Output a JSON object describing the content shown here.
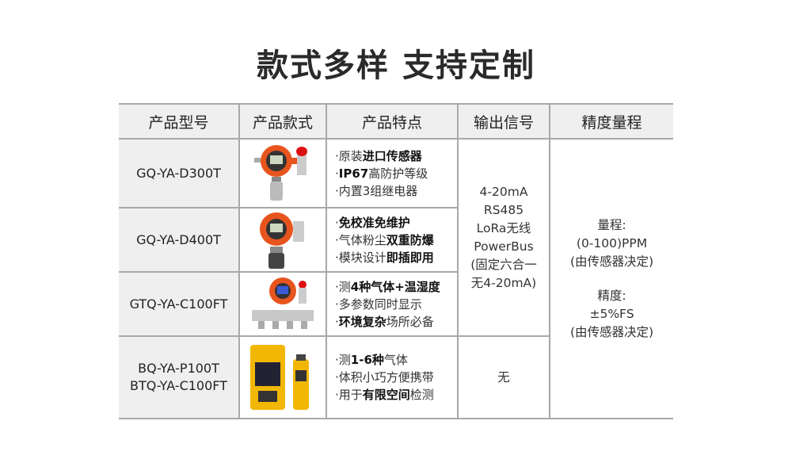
{
  "title": "款式多样 支持定制",
  "headers": [
    "产品型号",
    "产品款式",
    "产品特点",
    "输出信号",
    "精度量程"
  ],
  "rows": [
    {
      "model": [
        "GQ-YA-D300T"
      ],
      "image": "fixed-gas-detector-orange",
      "features": [
        [
          {
            "t": "·原装",
            "b": false
          },
          {
            "t": "进口传感器",
            "b": true
          }
        ],
        [
          {
            "t": "·",
            "b": false
          },
          {
            "t": "IP67",
            "b": true
          },
          {
            "t": "高防护等级",
            "b": false
          }
        ],
        [
          {
            "t": "·内置3组继电器",
            "b": false
          }
        ]
      ]
    },
    {
      "model": [
        "GQ-YA-D400T"
      ],
      "image": "explosion-proof-gas-detector-orange",
      "features": [
        [
          {
            "t": "·",
            "b": false
          },
          {
            "t": "免校准免维护",
            "b": true
          }
        ],
        [
          {
            "t": "·气体粉尘",
            "b": false
          },
          {
            "t": "双重防爆",
            "b": true
          }
        ],
        [
          {
            "t": "·模块设计",
            "b": false
          },
          {
            "t": "即插即用",
            "b": true
          }
        ]
      ]
    },
    {
      "model": [
        "GTQ-YA-C100FT"
      ],
      "image": "multi-gas-detector-manifold",
      "features": [
        [
          {
            "t": "·测",
            "b": false
          },
          {
            "t": "4种气体+温湿度",
            "b": true
          }
        ],
        [
          {
            "t": "·多参数同时显示",
            "b": false
          }
        ],
        [
          {
            "t": "·",
            "b": false
          },
          {
            "t": "环境复杂",
            "b": true
          },
          {
            "t": "场所必备",
            "b": false
          }
        ]
      ]
    },
    {
      "model": [
        "BQ-YA-P100T",
        "BTQ-YA-C100FT"
      ],
      "image": "portable-gas-detectors-yellow",
      "features": [
        [
          {
            "t": "·测",
            "b": false
          },
          {
            "t": "1-6种",
            "b": true
          },
          {
            "t": "气体",
            "b": false
          }
        ],
        [
          {
            "t": "·体积小巧方便携带",
            "b": false
          }
        ],
        [
          {
            "t": "·用于",
            "b": false
          },
          {
            "t": "有限空间",
            "b": true
          },
          {
            "t": "检测",
            "b": false
          }
        ]
      ]
    }
  ],
  "output_signal": [
    "4-20mA",
    "RS485",
    "LoRa无线",
    "PowerBus",
    "(固定六合一",
    "无4-20mA)"
  ],
  "output_signal_portable": "无",
  "accuracy": [
    "量程:",
    "(0-100)PPM",
    "(由传感器决定)",
    "",
    "精度:",
    "±5%FS",
    "(由传感器决定)"
  ],
  "colors": {
    "device_orange": "#e8541e",
    "portable_yellow": "#f2b705",
    "border": "#a8a8a8",
    "header_bg": "#efefef"
  }
}
